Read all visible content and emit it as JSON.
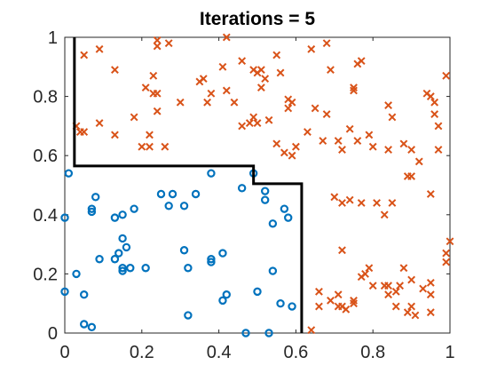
{
  "chart_data": {
    "type": "scatter",
    "title": "Iterations = 5",
    "xlabel": "",
    "ylabel": "",
    "xlim": [
      0,
      1
    ],
    "ylim": [
      0,
      1
    ],
    "xticks": [
      0,
      0.2,
      0.4,
      0.6,
      0.8,
      1
    ],
    "yticks": [
      0,
      0.2,
      0.4,
      0.6,
      0.8,
      1
    ],
    "xtick_labels": [
      "0",
      "0.2",
      "0.4",
      "0.6",
      "0.8",
      "1"
    ],
    "ytick_labels": [
      "0",
      "0.2",
      "0.4",
      "0.6",
      "0.8",
      "1"
    ],
    "grid": false,
    "legend": null,
    "colors": {
      "class_o": "#0072BD",
      "class_x": "#D95319",
      "boundary": "#000000"
    },
    "series": [
      {
        "marker": "o",
        "points": [
          [
            0.0,
            0.39
          ],
          [
            0.01,
            0.54
          ],
          [
            0.07,
            0.41
          ],
          [
            0.07,
            0.42
          ],
          [
            0.08,
            0.46
          ],
          [
            0.09,
            0.25
          ],
          [
            0.03,
            0.2
          ],
          [
            0.0,
            0.14
          ],
          [
            0.05,
            0.13
          ],
          [
            0.05,
            0.03
          ],
          [
            0.07,
            0.02
          ],
          [
            0.13,
            0.39
          ],
          [
            0.15,
            0.4
          ],
          [
            0.18,
            0.42
          ],
          [
            0.15,
            0.32
          ],
          [
            0.16,
            0.29
          ],
          [
            0.14,
            0.27
          ],
          [
            0.13,
            0.25
          ],
          [
            0.15,
            0.22
          ],
          [
            0.15,
            0.21
          ],
          [
            0.17,
            0.22
          ],
          [
            0.21,
            0.22
          ],
          [
            0.25,
            0.47
          ],
          [
            0.27,
            0.43
          ],
          [
            0.28,
            0.47
          ],
          [
            0.31,
            0.43
          ],
          [
            0.34,
            0.47
          ],
          [
            0.38,
            0.54
          ],
          [
            0.31,
            0.28
          ],
          [
            0.32,
            0.22
          ],
          [
            0.38,
            0.25
          ],
          [
            0.38,
            0.24
          ],
          [
            0.41,
            0.27
          ],
          [
            0.42,
            0.13
          ],
          [
            0.41,
            0.11
          ],
          [
            0.32,
            0.06
          ],
          [
            0.46,
            0.49
          ],
          [
            0.49,
            0.54
          ],
          [
            0.52,
            0.48
          ],
          [
            0.52,
            0.45
          ],
          [
            0.54,
            0.37
          ],
          [
            0.57,
            0.42
          ],
          [
            0.58,
            0.39
          ],
          [
            0.54,
            0.21
          ],
          [
            0.5,
            0.14
          ],
          [
            0.56,
            0.1
          ],
          [
            0.59,
            0.09
          ],
          [
            0.47,
            0.0
          ],
          [
            0.53,
            0.0
          ]
        ]
      },
      {
        "marker": "x",
        "points": [
          [
            0.05,
            0.94
          ],
          [
            0.09,
            0.96
          ],
          [
            0.13,
            0.89
          ],
          [
            0.03,
            0.7
          ],
          [
            0.04,
            0.68
          ],
          [
            0.05,
            0.68
          ],
          [
            0.09,
            0.71
          ],
          [
            0.13,
            0.67
          ],
          [
            0.18,
            0.73
          ],
          [
            0.2,
            0.63
          ],
          [
            0.22,
            0.63
          ],
          [
            0.22,
            0.67
          ],
          [
            0.24,
            0.75
          ],
          [
            0.21,
            0.83
          ],
          [
            0.23,
            0.81
          ],
          [
            0.24,
            0.81
          ],
          [
            0.23,
            0.87
          ],
          [
            0.24,
            0.97
          ],
          [
            0.27,
            0.98
          ],
          [
            0.24,
            0.99
          ],
          [
            0.26,
            0.63
          ],
          [
            0.3,
            0.78
          ],
          [
            0.35,
            0.85
          ],
          [
            0.36,
            0.86
          ],
          [
            0.37,
            0.78
          ],
          [
            0.38,
            0.81
          ],
          [
            0.42,
            0.82
          ],
          [
            0.44,
            0.78
          ],
          [
            0.41,
            0.9
          ],
          [
            0.42,
            1.0
          ],
          [
            0.46,
            0.92
          ],
          [
            0.49,
            0.89
          ],
          [
            0.5,
            0.88
          ],
          [
            0.51,
            0.89
          ],
          [
            0.51,
            0.83
          ],
          [
            0.52,
            0.86
          ],
          [
            0.55,
            0.94
          ],
          [
            0.56,
            0.88
          ],
          [
            0.58,
            0.79
          ],
          [
            0.58,
            0.76
          ],
          [
            0.46,
            0.7
          ],
          [
            0.48,
            0.71
          ],
          [
            0.49,
            0.73
          ],
          [
            0.5,
            0.71
          ],
          [
            0.53,
            0.72
          ],
          [
            0.55,
            0.64
          ],
          [
            0.57,
            0.61
          ],
          [
            0.59,
            0.6
          ],
          [
            0.6,
            0.63
          ],
          [
            0.59,
            0.78
          ],
          [
            0.63,
            0.68
          ],
          [
            0.65,
            0.76
          ],
          [
            0.64,
            0.96
          ],
          [
            0.68,
            0.98
          ],
          [
            0.69,
            0.89
          ],
          [
            0.68,
            0.74
          ],
          [
            0.67,
            0.65
          ],
          [
            0.71,
            0.65
          ],
          [
            0.72,
            0.62
          ],
          [
            0.74,
            0.69
          ],
          [
            0.76,
            0.65
          ],
          [
            0.79,
            0.67
          ],
          [
            0.8,
            0.63
          ],
          [
            0.75,
            0.82
          ],
          [
            0.76,
            0.91
          ],
          [
            0.77,
            0.92
          ],
          [
            0.75,
            0.83
          ],
          [
            0.72,
            0.44
          ],
          [
            0.74,
            0.45
          ],
          [
            0.7,
            0.46
          ],
          [
            0.77,
            0.44
          ],
          [
            0.81,
            0.44
          ],
          [
            0.83,
            0.4
          ],
          [
            0.85,
            0.44
          ],
          [
            0.84,
            0.77
          ],
          [
            0.85,
            0.73
          ],
          [
            0.84,
            0.62
          ],
          [
            0.88,
            0.64
          ],
          [
            0.9,
            0.62
          ],
          [
            0.92,
            0.58
          ],
          [
            0.89,
            0.53
          ],
          [
            0.9,
            0.53
          ],
          [
            0.95,
            0.47
          ],
          [
            0.97,
            0.62
          ],
          [
            0.94,
            0.81
          ],
          [
            0.95,
            0.8
          ],
          [
            0.96,
            0.78
          ],
          [
            0.96,
            0.74
          ],
          [
            0.97,
            0.7
          ],
          [
            0.99,
            0.87
          ],
          [
            0.99,
            0.27
          ],
          [
            1.0,
            0.31
          ],
          [
            0.99,
            0.24
          ],
          [
            0.95,
            0.17
          ],
          [
            0.93,
            0.15
          ],
          [
            0.9,
            0.18
          ],
          [
            0.88,
            0.22
          ],
          [
            0.87,
            0.16
          ],
          [
            0.86,
            0.14
          ],
          [
            0.83,
            0.16
          ],
          [
            0.84,
            0.16
          ],
          [
            0.84,
            0.13
          ],
          [
            0.77,
            0.19
          ],
          [
            0.78,
            0.2
          ],
          [
            0.8,
            0.16
          ],
          [
            0.79,
            0.22
          ],
          [
            0.72,
            0.28
          ],
          [
            0.75,
            0.1
          ],
          [
            0.71,
            0.13
          ],
          [
            0.69,
            0.11
          ],
          [
            0.71,
            0.09
          ],
          [
            0.66,
            0.09
          ],
          [
            0.66,
            0.14
          ],
          [
            0.73,
            0.08
          ],
          [
            0.72,
            0.09
          ],
          [
            0.75,
            0.11
          ],
          [
            0.64,
            0.01
          ],
          [
            0.86,
            0.09
          ],
          [
            0.89,
            0.07
          ],
          [
            0.9,
            0.09
          ],
          [
            0.91,
            0.06
          ],
          [
            0.95,
            0.07
          ],
          [
            0.95,
            0.13
          ]
        ]
      }
    ],
    "decision_boundary": [
      [
        0.025,
        1.0
      ],
      [
        0.025,
        0.565
      ],
      [
        0.49,
        0.565
      ],
      [
        0.49,
        0.505
      ],
      [
        0.615,
        0.505
      ],
      [
        0.615,
        0.0
      ]
    ]
  }
}
